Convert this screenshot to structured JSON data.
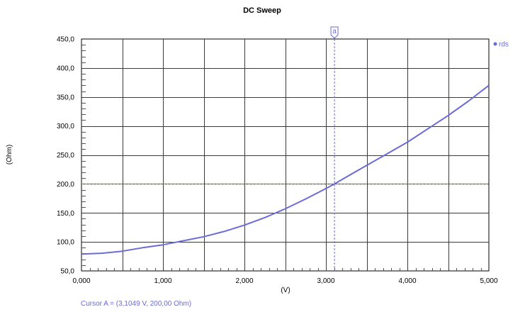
{
  "chart_data": {
    "type": "line",
    "title": "DC Sweep",
    "xlabel": "(V)",
    "ylabel": "(Ohm)",
    "xlim": [
      0.0,
      5.0
    ],
    "ylim": [
      50.0,
      450.0
    ],
    "x_ticks": [
      "0,000",
      "1,000",
      "2,000",
      "3,000",
      "4,000",
      "5,000"
    ],
    "y_ticks": [
      "50,0",
      "100,0",
      "150,0",
      "200,0",
      "250,0",
      "300,0",
      "350,0",
      "400,0",
      "450,0"
    ],
    "grid": true,
    "legend_position": "top-right",
    "series": [
      {
        "name": "rds",
        "color": "#6b6bd6",
        "x": [
          0.0,
          0.25,
          0.5,
          0.75,
          1.0,
          1.25,
          1.5,
          1.75,
          2.0,
          2.25,
          2.5,
          2.75,
          3.0,
          3.1049,
          3.25,
          3.5,
          3.75,
          4.0,
          4.25,
          4.5,
          4.75,
          5.0
        ],
        "values": [
          79.0,
          80.5,
          84.0,
          90.0,
          95.0,
          102.0,
          109.0,
          118.0,
          129.0,
          142.0,
          157.0,
          174.0,
          192.0,
          200.0,
          212.0,
          232.0,
          252.0,
          272.0,
          295.0,
          318.0,
          343.0,
          370.0
        ]
      }
    ],
    "cursor": {
      "label": "a",
      "x": 3.1049,
      "y": 200.0,
      "readout": "Cursor A = (3,1049 V, 200,00 Ohm)",
      "vertical_color": "#6b6bd6",
      "horizontal_color": "#9a9a2a"
    }
  }
}
